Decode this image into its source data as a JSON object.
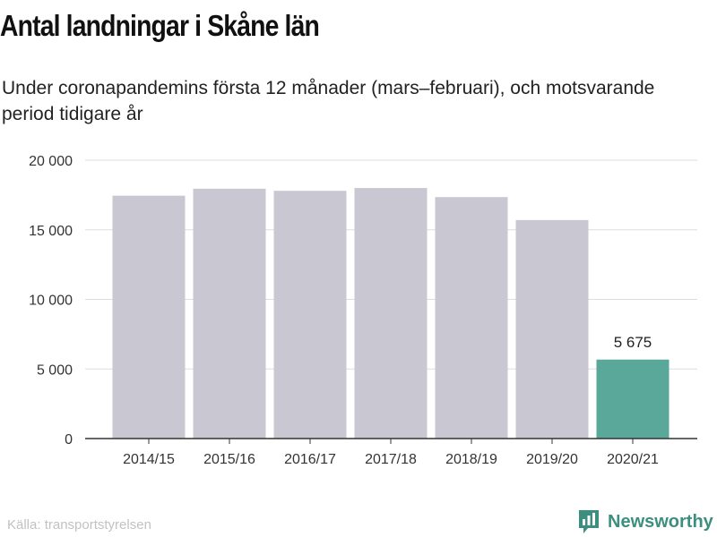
{
  "header": {
    "title": "Antal landningar i Skåne län",
    "subtitle": "Under coronapandemins första 12 månader (mars–februari), och motsvarande period tidigare år"
  },
  "footer": {
    "source": "Källa: transportstyrelsen",
    "brand": "Newsworthy",
    "brand_icon": "bar-chart-logo-icon"
  },
  "colors": {
    "bar": "#c8c7d2",
    "highlight": "#5aa89a",
    "grid": "#dddddd",
    "axis": "#333333",
    "brand": "#3c8f80"
  },
  "chart_data": {
    "type": "bar",
    "categories": [
      "2014/15",
      "2015/16",
      "2016/17",
      "2017/18",
      "2018/19",
      "2019/20",
      "2020/21"
    ],
    "values": [
      17450,
      17950,
      17800,
      18000,
      17350,
      15700,
      5675
    ],
    "highlight_index": 6,
    "data_labels": [
      {
        "index": 6,
        "text": "5 675"
      }
    ],
    "y_ticks": [
      0,
      5000,
      10000,
      15000,
      20000
    ],
    "y_tick_labels": [
      "0",
      "5 000",
      "10 000",
      "15 000",
      "20 000"
    ],
    "ylim": [
      0,
      20000
    ],
    "grid": true,
    "xlabel": "",
    "ylabel": ""
  }
}
